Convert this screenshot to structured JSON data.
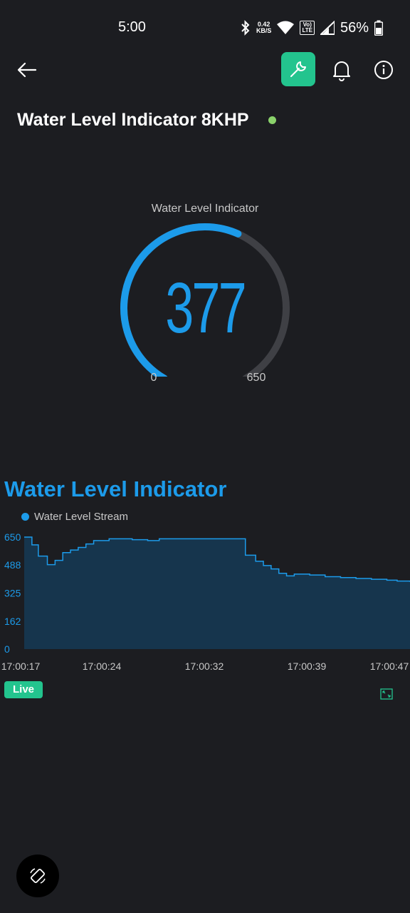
{
  "status_bar": {
    "time": "5:00",
    "net_speed_value": "0.42",
    "net_speed_unit": "KB/S",
    "volte_top": "Vo)",
    "volte_bottom": "LTE",
    "battery": "56%"
  },
  "header": {
    "title": "Water Level Indicator 8KHP",
    "online_color": "#8ad26b",
    "accent_color": "#23c48e"
  },
  "gauge": {
    "label": "Water Level Indicator",
    "value": "377",
    "min": "0",
    "max": "650",
    "value_num": 377,
    "min_num": 0,
    "max_num": 650,
    "color": "#1c9bea"
  },
  "chart_data": {
    "type": "area",
    "title": "Water Level Indicator",
    "legend": "Water Level Stream",
    "y_ticks": [
      "650",
      "488",
      "325",
      "162",
      "0"
    ],
    "x_ticks": [
      "17:00:17",
      "17:00:24",
      "17:00:32",
      "17:00:39",
      "17:00:47"
    ],
    "ylim": [
      0,
      650
    ],
    "xlim": [
      0,
      30
    ],
    "series": [
      {
        "name": "Water Level Stream",
        "x": [
          0,
          0.6,
          1.1,
          1.8,
          2.4,
          3.0,
          3.6,
          4.2,
          4.8,
          5.4,
          6.6,
          8.4,
          9.6,
          10.5,
          16.8,
          17.2,
          18.0,
          18.6,
          19.2,
          19.8,
          20.4,
          21.0,
          22.2,
          23.4,
          24.6,
          25.8,
          27.0,
          28.2,
          29.0,
          30.0
        ],
        "values": [
          650,
          605,
          540,
          490,
          515,
          560,
          575,
          590,
          610,
          630,
          640,
          635,
          630,
          640,
          640,
          545,
          510,
          485,
          465,
          440,
          425,
          435,
          430,
          420,
          415,
          410,
          405,
          400,
          395,
          390
        ]
      }
    ],
    "grid": false
  },
  "live_label": "Live"
}
